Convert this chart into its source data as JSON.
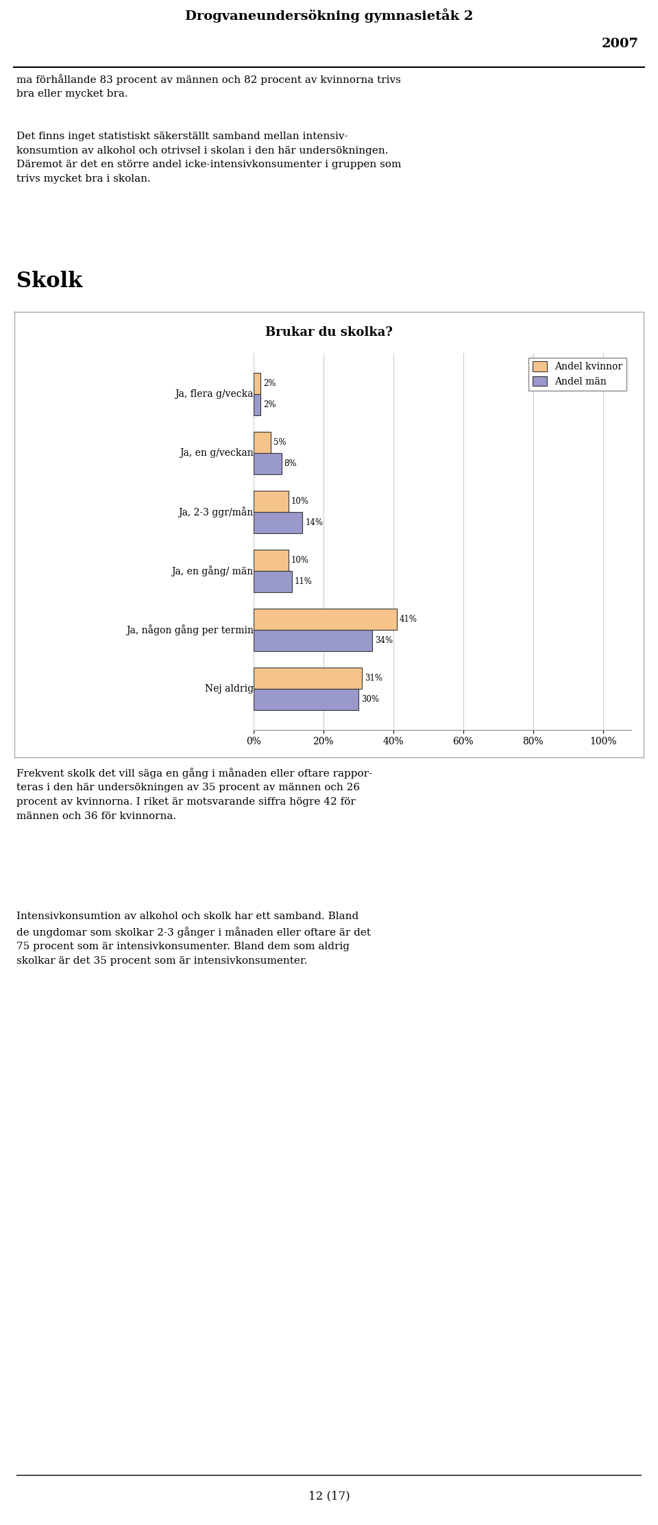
{
  "title_line1": "Drogvaneundersökning gymnasietåk 2",
  "title_line2": "2007",
  "text_para1": "ma förhållande 83 procent av männen och 82 procent av kvinnorna trivs\nbra eller mycket bra.",
  "text_para2": "Det finns inget statistiskt säkerställt samband mellan intensiv-\nkonsumtion av alkohol och otrivsel i skolan i den här undersökningen.\nDäremot är det en större andel icke-intensivkonsumenter i gruppen som\ntrivs mycket bra i skolan.",
  "section_title": "Skolk",
  "chart_title": "Brukar du skolka?",
  "categories": [
    "Ja, flera g/vecka",
    "Ja, en g/veckan",
    "Ja, 2-3 ggr/mån",
    "Ja, en gång/ män",
    "Ja, någon gång per termin",
    "Nej aldrig"
  ],
  "kvinnor_values": [
    2,
    5,
    10,
    10,
    41,
    31
  ],
  "man_values": [
    2,
    8,
    14,
    11,
    34,
    30
  ],
  "color_kvinnor": "#F5C48A",
  "color_man": "#9999CC",
  "legend_kvinnor": "Andel kvinnor",
  "legend_man": "Andel män",
  "xlabel_ticks": [
    "0%",
    "20%",
    "40%",
    "60%",
    "80%",
    "100%"
  ],
  "xlabel_values": [
    0,
    20,
    40,
    60,
    80,
    100
  ],
  "text_para3": "Frekvent skolk det vill säga en gång i månaden eller oftare rappor-\nteras i den här undersökningen av 35 procent av männen och 26\nprocent av kvinnorna. I riket är motsvarande siffra högre 42 för\nmännen och 36 för kvinnorna.",
  "text_para4": "Intensivkonsumtion av alkohol och skolk har ett samband. Bland\nde ungdomar som skolkar 2-3 gånger i månaden eller oftare är det\n75 procent som är intensivkonsumenter. Bland dem som aldrig\nskolkar är det 35 procent som är intensivkonsumenter.",
  "footer": "12 (17)",
  "bg_color": "#FFFFFF",
  "chart_bg": "#FFFFFF",
  "chart_border": "#AAAAAA"
}
